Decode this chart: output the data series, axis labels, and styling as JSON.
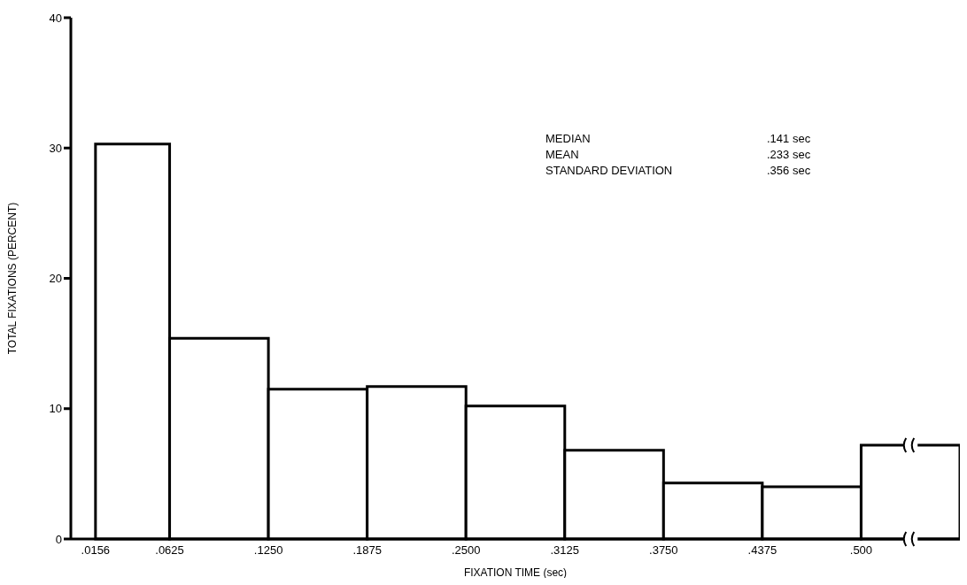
{
  "chart_data": {
    "type": "histogram",
    "xlabel": "FIXATION TIME (sec)",
    "ylabel": "TOTAL FIXATIONS (PERCENT)",
    "bins": [
      0.0156,
      0.0625,
      0.125,
      0.1875,
      0.25,
      0.3125,
      0.375,
      0.4375,
      0.5,
      0.5625
    ],
    "values": [
      30.3,
      15.4,
      11.5,
      11.7,
      10.2,
      6.8,
      4.3,
      4.0,
      7.2
    ],
    "color": "#ffffff",
    "xlim": [
      0,
      0.5625
    ],
    "xticks": [
      {
        "value": 0.0156,
        "label": ".0156"
      },
      {
        "value": 0.0625,
        "label": ".0625"
      },
      {
        "value": 0.125,
        "label": ".1250"
      },
      {
        "value": 0.1875,
        "label": ".1875"
      },
      {
        "value": 0.25,
        "label": ".2500"
      },
      {
        "value": 0.3125,
        "label": ".3125"
      },
      {
        "value": 0.375,
        "label": ".3750"
      },
      {
        "value": 0.4375,
        "label": ".4375"
      },
      {
        "value": 0.5,
        "label": ".500"
      }
    ],
    "ylim": [
      0,
      40
    ],
    "yticks": [
      0,
      10,
      20,
      30,
      40
    ],
    "annotations": [
      "MEDIAN",
      ".141 sec",
      "MEAN",
      ".233 sec",
      "STANDARD DEVIATION",
      ".356 sec"
    ]
  }
}
